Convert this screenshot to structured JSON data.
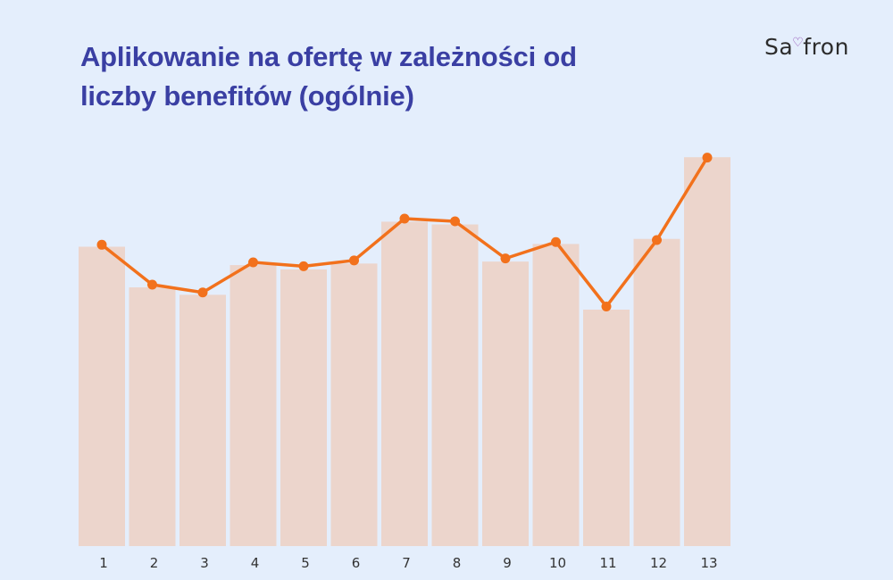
{
  "title": {
    "line1": "Aplikowanie na ofertę w zależności od",
    "line2": "liczby benefitów (ogólnie)"
  },
  "brand": {
    "part1": "Sa",
    "mark": "♡",
    "part2": "fron"
  },
  "colors": {
    "bar": "#ecd5cc",
    "line": "#f2711c",
    "title": "#3a3fa3",
    "background": "#e4eefc"
  },
  "chart_data": {
    "type": "bar",
    "title": "Aplikowanie na ofertę w zależności od liczby benefitów (ogólnie)",
    "xlabel": "",
    "ylabel": "",
    "categories": [
      "1",
      "2",
      "3",
      "4",
      "5",
      "6",
      "7",
      "8",
      "9",
      "10",
      "11",
      "12",
      "13"
    ],
    "ylim": [
      0,
      100
    ],
    "grid": false,
    "legend": "none",
    "series": [
      {
        "type": "bar",
        "values": [
          76.6,
          66.2,
          64.3,
          71.9,
          70.8,
          72.3,
          83.0,
          82.3,
          72.8,
          77.3,
          60.5,
          78.6,
          99.5
        ]
      },
      {
        "type": "line",
        "values": [
          77.1,
          66.9,
          64.9,
          72.6,
          71.6,
          73.1,
          83.8,
          83.1,
          73.6,
          77.8,
          61.3,
          78.3,
          99.4
        ]
      }
    ]
  }
}
